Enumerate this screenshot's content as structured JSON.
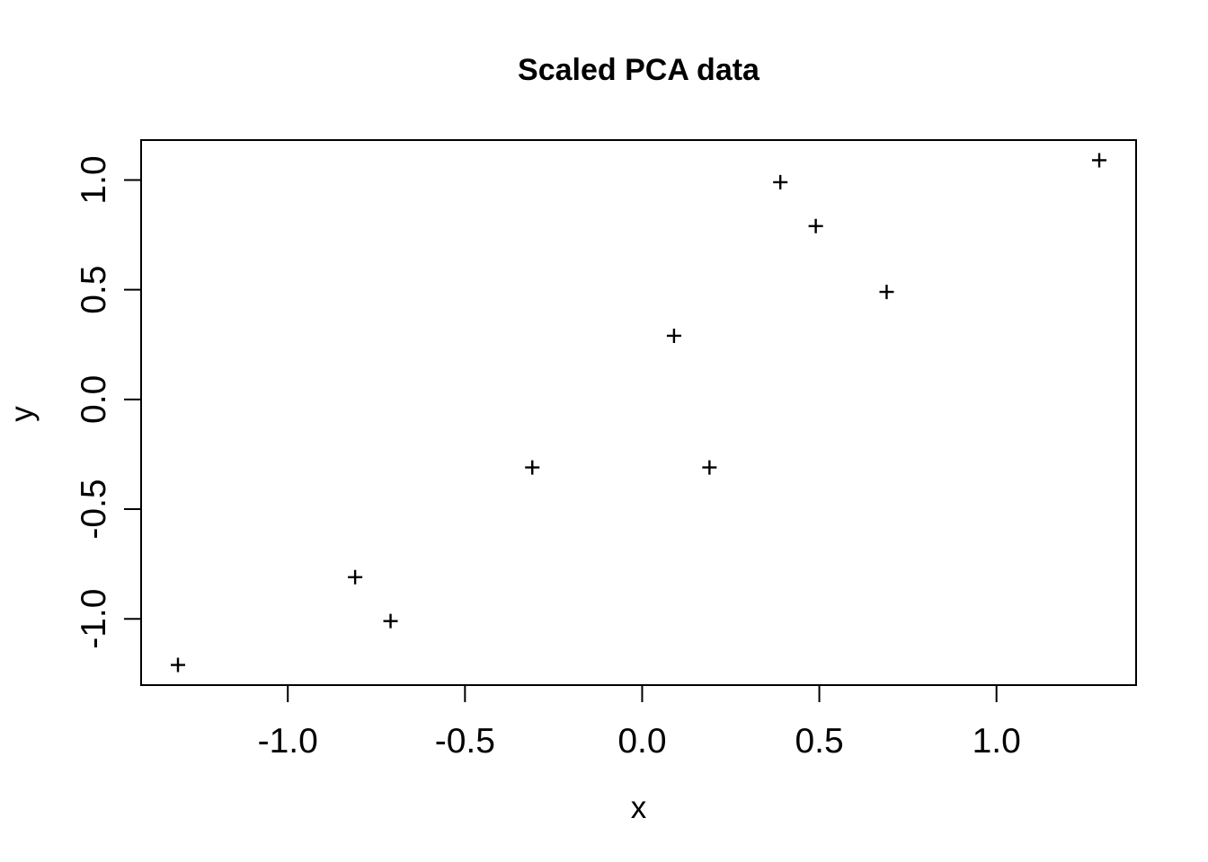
{
  "chart_data": {
    "type": "scatter",
    "title": "Scaled PCA data",
    "xlabel": "x",
    "ylabel": "y",
    "points": [
      {
        "x": 0.69,
        "y": 0.49
      },
      {
        "x": -1.31,
        "y": -1.21
      },
      {
        "x": 0.39,
        "y": 0.99
      },
      {
        "x": 0.09,
        "y": 0.29
      },
      {
        "x": 1.29,
        "y": 1.09
      },
      {
        "x": 0.49,
        "y": 0.79
      },
      {
        "x": 0.19,
        "y": -0.31
      },
      {
        "x": -0.81,
        "y": -0.81
      },
      {
        "x": -0.31,
        "y": -0.31
      },
      {
        "x": -0.71,
        "y": -1.01
      }
    ],
    "x_ticks": [
      -1.0,
      -0.5,
      0.0,
      0.5,
      1.0
    ],
    "x_tick_labels": [
      "-1.0",
      "-0.5",
      "0.0",
      "0.5",
      "1.0"
    ],
    "y_ticks": [
      -1.0,
      -0.5,
      0.0,
      0.5,
      1.0
    ],
    "y_tick_labels": [
      "-1.0",
      "-0.5",
      "0.0",
      "0.5",
      "1.0"
    ],
    "xlim": [
      -1.414,
      1.394
    ],
    "ylim": [
      -1.302,
      1.182
    ],
    "marker": "plus",
    "grid": false,
    "legend": null,
    "colors": {
      "foreground": "#000000",
      "background": "#ffffff"
    }
  }
}
